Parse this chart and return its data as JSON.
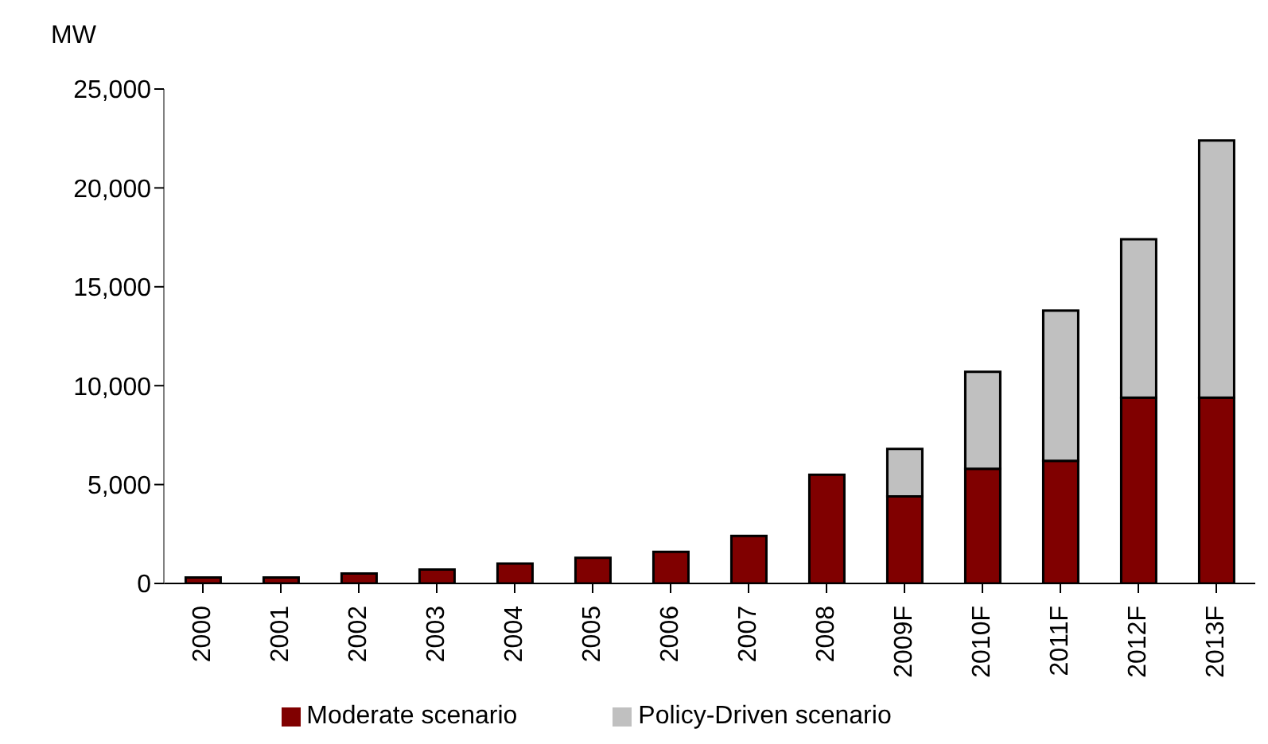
{
  "chart_data": {
    "type": "bar",
    "ylabel": "MW",
    "stacked": true,
    "categories": [
      "2000",
      "2001",
      "2002",
      "2003",
      "2004",
      "2005",
      "2006",
      "2007",
      "2008",
      "2009F",
      "2010F",
      "2011F",
      "2012F",
      "2013F"
    ],
    "series": [
      {
        "name": "Moderate scenario",
        "color": "#800000",
        "values": [
          300,
          300,
          500,
          700,
          1000,
          1300,
          1600,
          2400,
          5500,
          4400,
          5800,
          6200,
          9400,
          9400
        ]
      },
      {
        "name": "Policy-Driven scenario",
        "color": "#c0c0c0",
        "values": [
          null,
          null,
          null,
          null,
          null,
          null,
          null,
          null,
          null,
          2400,
          4900,
          7600,
          8000,
          13000
        ]
      }
    ],
    "ylim": [
      0,
      25000
    ],
    "yticks": [
      0,
      {
        "value": 5000,
        "label": "5,000"
      },
      {
        "value": 10000,
        "label": "10,000"
      },
      {
        "value": 15000,
        "label": "15,000"
      },
      {
        "value": 20000,
        "label": "20,000"
      },
      {
        "value": 25000,
        "label": "25,000"
      }
    ],
    "grid": false,
    "legend": "bottom"
  }
}
